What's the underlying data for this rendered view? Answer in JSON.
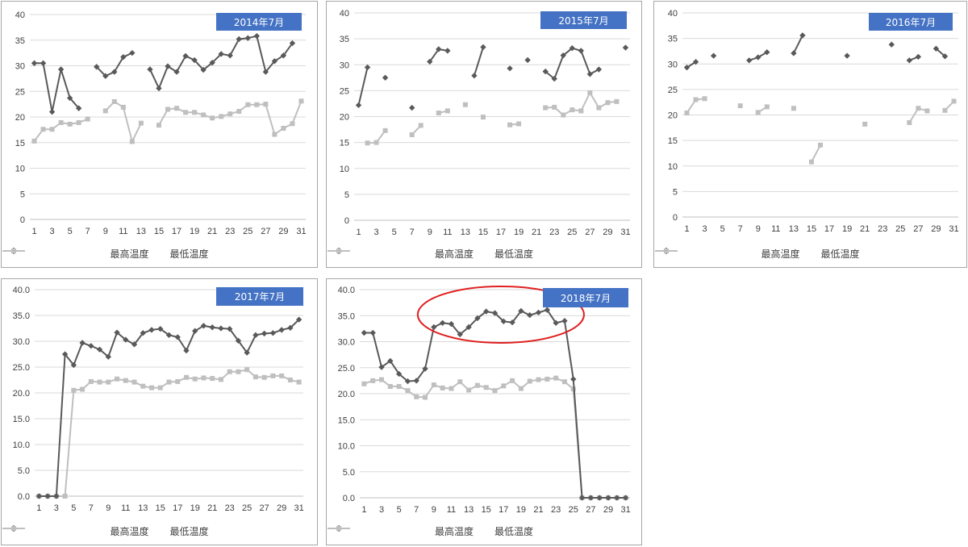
{
  "chart_data": [
    {
      "type": "line",
      "title": "2014年7月",
      "categories": [
        1,
        2,
        3,
        4,
        5,
        6,
        7,
        8,
        9,
        10,
        11,
        12,
        13,
        14,
        15,
        16,
        17,
        18,
        19,
        20,
        21,
        22,
        23,
        24,
        25,
        26,
        27,
        28,
        29,
        30,
        31
      ],
      "x_tick_labels": [
        "1",
        "3",
        "5",
        "7",
        "9",
        "11",
        "13",
        "15",
        "17",
        "19",
        "21",
        "23",
        "25",
        "27",
        "29",
        "31"
      ],
      "y_tick_labels": [
        "0",
        "5",
        "10",
        "15",
        "20",
        "25",
        "30",
        "35",
        "40"
      ],
      "ylim": [
        0,
        40
      ],
      "grid": true,
      "legend_position": "bottom",
      "series": [
        {
          "name": "最高温度",
          "color": "#595959",
          "values": [
            30.5,
            30.5,
            21.0,
            29.3,
            23.7,
            21.7,
            null,
            29.8,
            28.0,
            28.8,
            31.7,
            32.5,
            null,
            29.3,
            25.6,
            29.9,
            28.8,
            31.9,
            31.1,
            29.2,
            30.6,
            32.3,
            32.0,
            35.2,
            35.4,
            35.8,
            28.8,
            30.9,
            32.0,
            34.4,
            null
          ]
        },
        {
          "name": "最低温度",
          "color": "#bfbfbf",
          "values": [
            15.3,
            17.6,
            17.6,
            18.9,
            18.6,
            18.9,
            19.6,
            null,
            21.2,
            23.0,
            21.9,
            15.2,
            18.8,
            null,
            18.4,
            21.5,
            21.7,
            20.9,
            20.9,
            20.4,
            19.8,
            20.1,
            20.6,
            21.1,
            22.4,
            22.4,
            22.5,
            16.6,
            17.8,
            18.7,
            23.1
          ]
        }
      ]
    },
    {
      "type": "line",
      "title": "2015年7月",
      "categories": [
        1,
        2,
        3,
        4,
        5,
        6,
        7,
        8,
        9,
        10,
        11,
        12,
        13,
        14,
        15,
        16,
        17,
        18,
        19,
        20,
        21,
        22,
        23,
        24,
        25,
        26,
        27,
        28,
        29,
        30,
        31
      ],
      "x_tick_labels": [
        "1",
        "3",
        "5",
        "7",
        "9",
        "11",
        "13",
        "15",
        "17",
        "19",
        "21",
        "23",
        "25",
        "27",
        "29",
        "31"
      ],
      "y_tick_labels": [
        "0",
        "5",
        "10",
        "15",
        "20",
        "25",
        "30",
        "35",
        "40"
      ],
      "ylim": [
        0,
        40
      ],
      "grid": true,
      "legend_position": "bottom",
      "series": [
        {
          "name": "最高温度",
          "color": "#595959",
          "values": [
            22.2,
            29.5,
            null,
            27.5,
            null,
            null,
            21.7,
            null,
            30.6,
            33.0,
            32.7,
            null,
            null,
            27.9,
            33.4,
            null,
            null,
            29.3,
            null,
            30.9,
            null,
            28.7,
            27.3,
            31.8,
            33.2,
            32.7,
            28.2,
            29.1,
            null,
            null,
            33.3
          ]
        },
        {
          "name": "最低温度",
          "color": "#bfbfbf",
          "values": [
            null,
            14.9,
            15.0,
            17.3,
            null,
            null,
            16.5,
            18.3,
            null,
            20.7,
            21.1,
            null,
            22.3,
            null,
            19.9,
            null,
            null,
            18.4,
            18.6,
            null,
            null,
            21.7,
            21.8,
            20.3,
            21.3,
            21.1,
            24.6,
            21.7,
            22.7,
            22.9,
            null
          ]
        }
      ]
    },
    {
      "type": "line",
      "title": "2016年7月",
      "categories": [
        1,
        2,
        3,
        4,
        5,
        6,
        7,
        8,
        9,
        10,
        11,
        12,
        13,
        14,
        15,
        16,
        17,
        18,
        19,
        20,
        21,
        22,
        23,
        24,
        25,
        26,
        27,
        28,
        29,
        30,
        31
      ],
      "x_tick_labels": [
        "1",
        "3",
        "5",
        "7",
        "9",
        "11",
        "13",
        "15",
        "17",
        "19",
        "21",
        "23",
        "25",
        "27",
        "29",
        "31"
      ],
      "y_tick_labels": [
        "0",
        "5",
        "10",
        "15",
        "20",
        "25",
        "30",
        "35",
        "40"
      ],
      "ylim": [
        0,
        40
      ],
      "grid": true,
      "legend_position": "bottom",
      "series": [
        {
          "name": "最高温度",
          "color": "#595959",
          "values": [
            29.3,
            30.4,
            null,
            31.6,
            null,
            null,
            null,
            30.7,
            31.3,
            32.3,
            null,
            null,
            32.1,
            35.6,
            null,
            null,
            null,
            null,
            31.6,
            null,
            null,
            null,
            null,
            33.8,
            null,
            30.7,
            31.4,
            null,
            33.0,
            31.5,
            null
          ]
        },
        {
          "name": "最低温度",
          "color": "#bfbfbf",
          "values": [
            20.4,
            23.0,
            23.2,
            null,
            null,
            null,
            21.8,
            null,
            20.5,
            21.6,
            null,
            null,
            21.3,
            null,
            10.8,
            14.1,
            null,
            null,
            null,
            null,
            18.2,
            null,
            null,
            null,
            null,
            18.5,
            21.3,
            20.8,
            null,
            20.9,
            22.7
          ]
        }
      ]
    },
    {
      "type": "line",
      "title": "2017年7月",
      "categories": [
        1,
        2,
        3,
        4,
        5,
        6,
        7,
        8,
        9,
        10,
        11,
        12,
        13,
        14,
        15,
        16,
        17,
        18,
        19,
        20,
        21,
        22,
        23,
        24,
        25,
        26,
        27,
        28,
        29,
        30,
        31
      ],
      "x_tick_labels": [
        "1",
        "3",
        "5",
        "7",
        "9",
        "11",
        "13",
        "15",
        "17",
        "19",
        "21",
        "23",
        "25",
        "27",
        "29",
        "31"
      ],
      "y_tick_labels": [
        "0.0",
        "5.0",
        "10.0",
        "15.0",
        "20.0",
        "25.0",
        "30.0",
        "35.0",
        "40.0"
      ],
      "ylim": [
        0,
        40
      ],
      "grid": true,
      "legend_position": "bottom",
      "series": [
        {
          "name": "最高温度",
          "color": "#595959",
          "values": [
            0,
            0,
            0,
            27.5,
            25.4,
            29.7,
            29.1,
            28.4,
            27.0,
            31.7,
            30.3,
            29.4,
            31.6,
            32.2,
            32.4,
            31.2,
            30.8,
            28.2,
            32.0,
            33.0,
            32.7,
            32.5,
            32.4,
            30.1,
            27.8,
            31.2,
            31.5,
            31.6,
            32.2,
            32.6,
            34.2
          ]
        },
        {
          "name": "最低温度",
          "color": "#bfbfbf",
          "values": [
            0,
            0,
            0,
            0,
            20.5,
            20.7,
            22.2,
            22.1,
            22.1,
            22.7,
            22.4,
            22.1,
            21.3,
            21.0,
            21.0,
            22.1,
            22.2,
            23.0,
            22.7,
            22.9,
            22.8,
            22.6,
            24.1,
            24.1,
            24.5,
            23.1,
            23.0,
            23.3,
            23.3,
            22.5,
            22.1
          ]
        }
      ]
    },
    {
      "type": "line",
      "title": "2018年7月",
      "categories": [
        1,
        2,
        3,
        4,
        5,
        6,
        7,
        8,
        9,
        10,
        11,
        12,
        13,
        14,
        15,
        16,
        17,
        18,
        19,
        20,
        21,
        22,
        23,
        24,
        25,
        26,
        27,
        28,
        29,
        30,
        31
      ],
      "x_tick_labels": [
        "1",
        "3",
        "5",
        "7",
        "9",
        "11",
        "13",
        "15",
        "17",
        "19",
        "21",
        "23",
        "25",
        "27",
        "29",
        "31"
      ],
      "y_tick_labels": [
        "0.0",
        "5.0",
        "10.0",
        "15.0",
        "20.0",
        "25.0",
        "30.0",
        "35.0",
        "40.0"
      ],
      "ylim": [
        0,
        40
      ],
      "grid": true,
      "legend_position": "bottom",
      "annotation": "red ellipse highlighting days 9-24 of 最高温度",
      "series": [
        {
          "name": "最高温度",
          "color": "#595959",
          "values": [
            31.7,
            31.7,
            25.1,
            26.3,
            23.8,
            22.4,
            22.5,
            24.8,
            32.8,
            33.6,
            33.4,
            31.4,
            32.8,
            34.5,
            35.8,
            35.5,
            33.9,
            33.7,
            35.9,
            35.1,
            35.6,
            36.1,
            33.6,
            34.0,
            22.8,
            0,
            0,
            0,
            0,
            0,
            0
          ]
        },
        {
          "name": "最低温度",
          "color": "#bfbfbf",
          "values": [
            21.9,
            22.5,
            22.7,
            21.4,
            21.4,
            20.6,
            19.4,
            19.3,
            21.7,
            21.1,
            21.0,
            22.3,
            20.7,
            21.6,
            21.2,
            20.6,
            21.5,
            22.5,
            21.0,
            22.4,
            22.7,
            22.8,
            23.0,
            22.3,
            20.9,
            0,
            0,
            0,
            0,
            0,
            0
          ]
        }
      ]
    }
  ]
}
